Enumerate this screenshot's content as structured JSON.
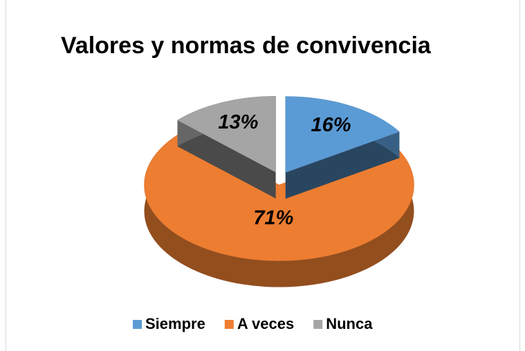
{
  "chart_data": {
    "type": "pie",
    "title": "Valores y normas de convivencia",
    "categories": [
      "Siempre",
      "A veces",
      "Nunca"
    ],
    "values": [
      16,
      71,
      13
    ],
    "value_labels": [
      "16%",
      "71%",
      "13%"
    ],
    "colors": [
      "#5b9bd5",
      "#ed7d31",
      "#a5a5a5"
    ],
    "legend": "bottom"
  }
}
